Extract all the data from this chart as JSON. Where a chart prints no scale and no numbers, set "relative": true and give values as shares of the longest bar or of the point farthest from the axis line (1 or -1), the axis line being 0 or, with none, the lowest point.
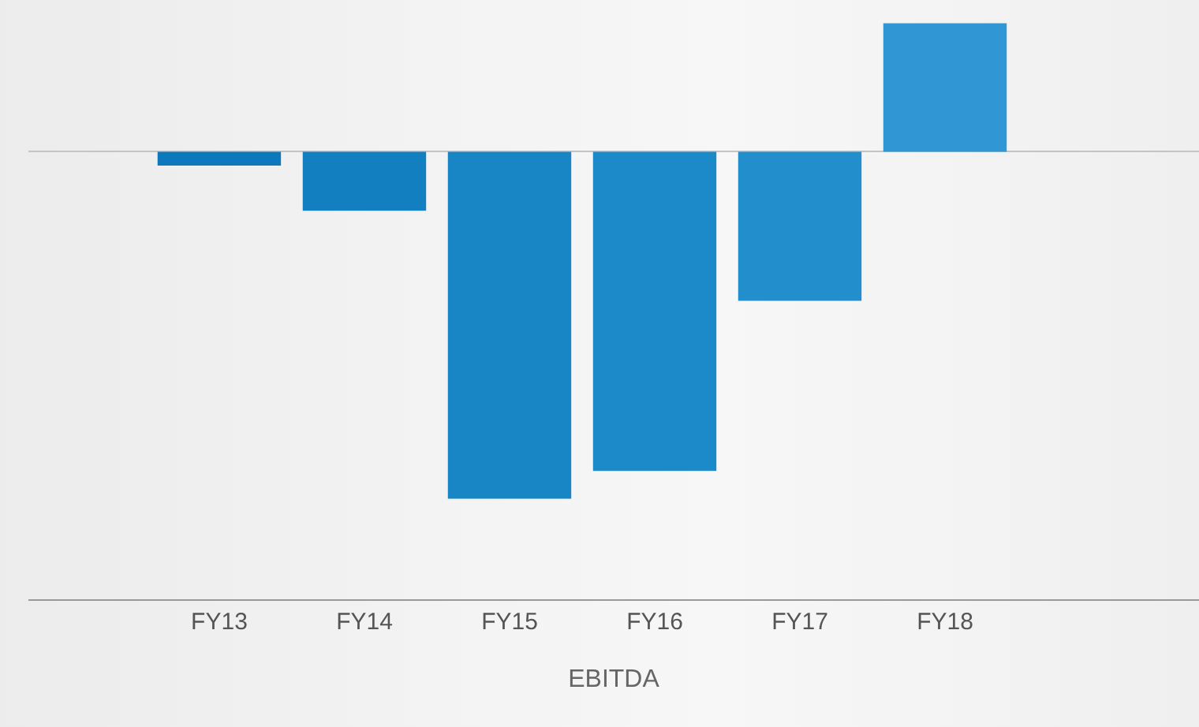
{
  "chart_data": {
    "type": "bar",
    "relative": true,
    "xlabel": "EBITDA",
    "categories": [
      "FY13",
      "FY14",
      "FY15",
      "FY16",
      "FY17",
      "FY18"
    ],
    "values": [
      -0.04,
      -0.17,
      -1,
      -0.92,
      -0.43,
      0.37
    ],
    "colors": [
      "#0b79bb",
      "#117fc0",
      "#1886c5",
      "#1c8ac8",
      "#238ecc",
      "#3096d4"
    ],
    "grid": false,
    "tick_labels": "x"
  }
}
